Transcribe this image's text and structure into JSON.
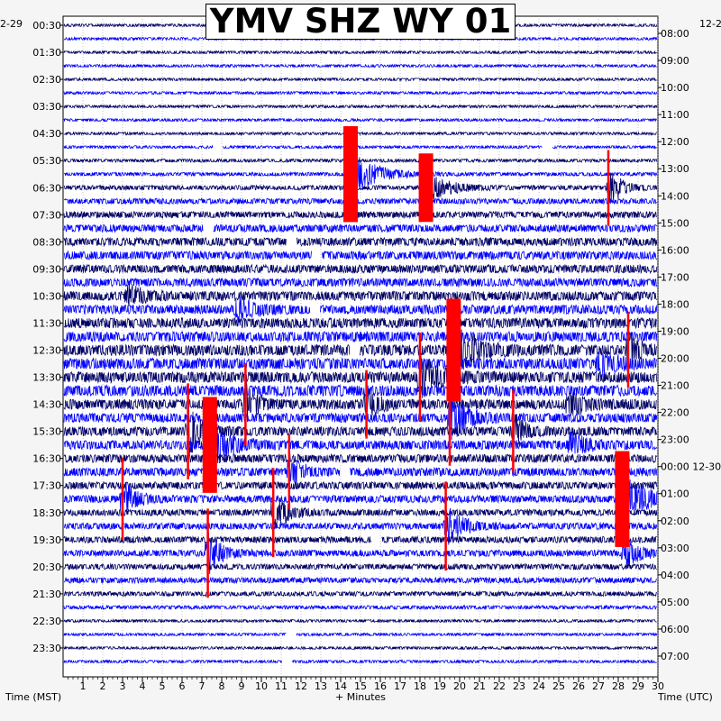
{
  "title": "YMV SHZ WY 01",
  "date_left": "2-29",
  "date_right": "12-2",
  "footer": {
    "left_label": "Time (MST)",
    "x_label": "+ Minutes",
    "right_label": "Time (UTC)"
  },
  "colors": {
    "trace_dark": "#000066",
    "trace_blue": "#0000ff",
    "event_red": "#ff0000",
    "background": "#f5f5f5",
    "plot_bg": "#ffffff"
  },
  "chart_data": {
    "type": "heatmap",
    "description_type": "helicorder",
    "x_ticks": [
      1,
      2,
      3,
      4,
      5,
      6,
      7,
      8,
      9,
      10,
      11,
      12,
      13,
      14,
      15,
      16,
      17,
      18,
      19,
      20,
      21,
      22,
      23,
      24,
      25,
      26,
      27,
      28,
      29,
      30
    ],
    "xlim": [
      0,
      30
    ],
    "left_time_labels": [
      "00:30",
      "01:30",
      "02:30",
      "03:30",
      "04:30",
      "05:30",
      "06:30",
      "07:30",
      "08:30",
      "09:30",
      "10:30",
      "11:30",
      "12:30",
      "13:30",
      "14:30",
      "15:30",
      "16:30",
      "17:30",
      "18:30",
      "19:30",
      "20:30",
      "21:30",
      "22:30",
      "23:30"
    ],
    "right_time_labels": [
      "08:00",
      "09:00",
      "10:00",
      "11:00",
      "12:00",
      "13:00",
      "14:00",
      "15:00",
      "16:00",
      "17:00",
      "18:00",
      "19:00",
      "20:00",
      "21:00",
      "22:00",
      "23:00",
      "00:00 12-30",
      "01:00",
      "02:00",
      "03:00",
      "04:00",
      "05:00",
      "06:00",
      "07:00"
    ],
    "rows": 48,
    "noise_profile": [
      1.5,
      1.5,
      1.5,
      1.5,
      1.5,
      1.5,
      1.5,
      1.5,
      1.5,
      1.5,
      1.8,
      2,
      2.5,
      3,
      3.5,
      4,
      4.5,
      4.5,
      4.5,
      4.5,
      5,
      5,
      5.5,
      5.5,
      6,
      6,
      6,
      6,
      5.5,
      5,
      5,
      5,
      4.5,
      4.5,
      4,
      4,
      3.5,
      3.5,
      3.5,
      3.5,
      3,
      3,
      2.5,
      2,
      1.5,
      1.5,
      1.5,
      1.5
    ],
    "events": [
      {
        "row": 11,
        "minute": 14.5,
        "amp": 28,
        "dur": 0.9,
        "red": true,
        "clip": true
      },
      {
        "row": 12,
        "minute": 18.3,
        "amp": 20,
        "dur": 0.8,
        "red": true,
        "clip": true
      },
      {
        "row": 12,
        "minute": 27.5,
        "amp": 22,
        "dur": 0.4,
        "red": true
      },
      {
        "row": 20,
        "minute": 3.2,
        "amp": 14,
        "dur": 0.6
      },
      {
        "row": 21,
        "minute": 8.7,
        "amp": 16,
        "dur": 0.6
      },
      {
        "row": 24,
        "minute": 19.7,
        "amp": 30,
        "dur": 0.8,
        "red": true,
        "clip": true
      },
      {
        "row": 24,
        "minute": 28.5,
        "amp": 22,
        "dur": 0.3,
        "red": true
      },
      {
        "row": 25,
        "minute": 27,
        "amp": 14,
        "dur": 0.6
      },
      {
        "row": 26,
        "minute": 18,
        "amp": 26,
        "dur": 0.7,
        "red": true
      },
      {
        "row": 28,
        "minute": 9.2,
        "amp": 24,
        "dur": 0.3,
        "red": true
      },
      {
        "row": 28,
        "minute": 15.3,
        "amp": 20,
        "dur": 0.3,
        "red": true
      },
      {
        "row": 28,
        "minute": 25.5,
        "amp": 14,
        "dur": 0.6
      },
      {
        "row": 29,
        "minute": 19.5,
        "amp": 28,
        "dur": 0.6,
        "red": true
      },
      {
        "row": 30,
        "minute": 6.3,
        "amp": 28,
        "dur": 0.5,
        "red": true
      },
      {
        "row": 30,
        "minute": 22.7,
        "amp": 24,
        "dur": 0.3,
        "red": true
      },
      {
        "row": 31,
        "minute": 7.4,
        "amp": 28,
        "dur": 0.7,
        "red": true,
        "clip": true
      },
      {
        "row": 31,
        "minute": 25.5,
        "amp": 16,
        "dur": 0.5
      },
      {
        "row": 33,
        "minute": 11.4,
        "amp": 22,
        "dur": 0.3,
        "red": true
      },
      {
        "row": 35,
        "minute": 3.0,
        "amp": 24,
        "dur": 0.4,
        "red": true
      },
      {
        "row": 35,
        "minute": 28.2,
        "amp": 28,
        "dur": 1.0,
        "red": true,
        "clip": true
      },
      {
        "row": 36,
        "minute": 10.6,
        "amp": 26,
        "dur": 0.4,
        "red": true
      },
      {
        "row": 37,
        "minute": 19.3,
        "amp": 26,
        "dur": 0.5,
        "red": true
      },
      {
        "row": 39,
        "minute": 7.3,
        "amp": 26,
        "dur": 0.4,
        "red": true
      },
      {
        "row": 39,
        "minute": 28.3,
        "amp": 18,
        "dur": 0.5
      }
    ],
    "gaps": [
      {
        "row": 9,
        "minute": 7.8
      },
      {
        "row": 9,
        "minute": 24.4
      },
      {
        "row": 15,
        "minute": 7.3
      },
      {
        "row": 16,
        "minute": 11.5
      },
      {
        "row": 17,
        "minute": 12.8
      },
      {
        "row": 21,
        "minute": 12.7
      },
      {
        "row": 24,
        "minute": 14.7
      },
      {
        "row": 33,
        "minute": 14.2
      },
      {
        "row": 38,
        "minute": 15.8
      },
      {
        "row": 45,
        "minute": 11.5
      },
      {
        "row": 47,
        "minute": 11.3
      }
    ]
  }
}
